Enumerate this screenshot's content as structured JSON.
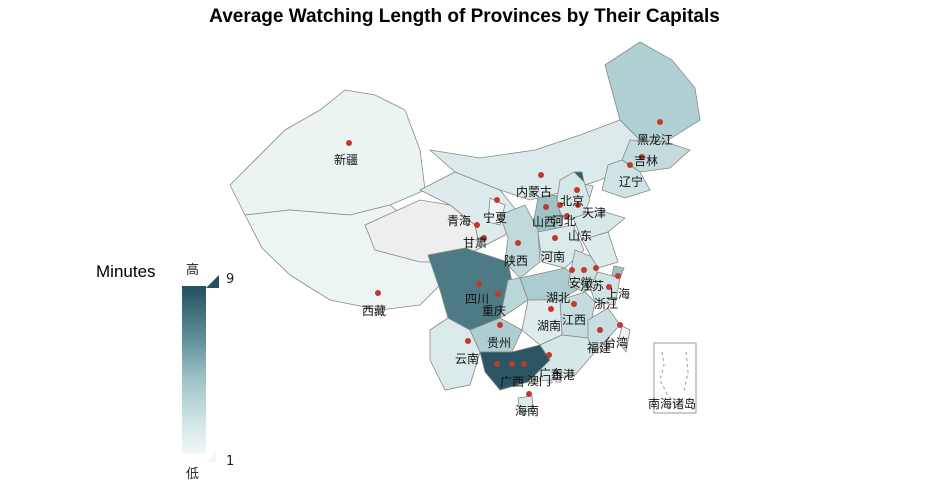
{
  "chart_data": {
    "type": "map",
    "title": "Average Watching Length of Provinces by Their Capitals",
    "visual_map": {
      "title": "Minutes",
      "high_text": "高",
      "low_text": "低",
      "max": "9",
      "min": "1"
    },
    "inset_label": "南海诸岛",
    "regions": [
      {
        "name": "新疆",
        "value": 1.5
      },
      {
        "name": "西藏",
        "value": 1.4
      },
      {
        "name": "青海",
        "value": 1.0
      },
      {
        "name": "甘肃",
        "value": 2.2
      },
      {
        "name": "内蒙古",
        "value": 2.3
      },
      {
        "name": "黑龙江",
        "value": 4.2
      },
      {
        "name": "吉林",
        "value": 3.5
      },
      {
        "name": "辽宁",
        "value": 3.0
      },
      {
        "name": "北京",
        "value": 8.5
      },
      {
        "name": "天津",
        "value": 2.5
      },
      {
        "name": "河北",
        "value": 2.6
      },
      {
        "name": "山西",
        "value": 5.0
      },
      {
        "name": "山东",
        "value": 2.5
      },
      {
        "name": "宁夏",
        "value": 1.3
      },
      {
        "name": "陕西",
        "value": 3.6
      },
      {
        "name": "河南",
        "value": 2.4
      },
      {
        "name": "四川",
        "value": 7.6
      },
      {
        "name": "重庆",
        "value": 3.8
      },
      {
        "name": "湖北",
        "value": 4.4
      },
      {
        "name": "安徽",
        "value": 3.1
      },
      {
        "name": "江苏",
        "value": 2.2
      },
      {
        "name": "上海",
        "value": 5.0
      },
      {
        "name": "浙江",
        "value": 2.9
      },
      {
        "name": "江西",
        "value": 3.4
      },
      {
        "name": "湖南",
        "value": 2.2
      },
      {
        "name": "贵州",
        "value": 4.3
      },
      {
        "name": "云南",
        "value": 2.4
      },
      {
        "name": "广西",
        "value": 8.8
      },
      {
        "name": "广东",
        "value": 2.6
      },
      {
        "name": "福建",
        "value": 3.3
      },
      {
        "name": "台湾",
        "value": 1.5
      },
      {
        "name": "海南",
        "value": 2.4
      },
      {
        "name": "香港",
        "value": 1.5
      },
      {
        "name": "澳门",
        "value": 1.5
      }
    ]
  }
}
